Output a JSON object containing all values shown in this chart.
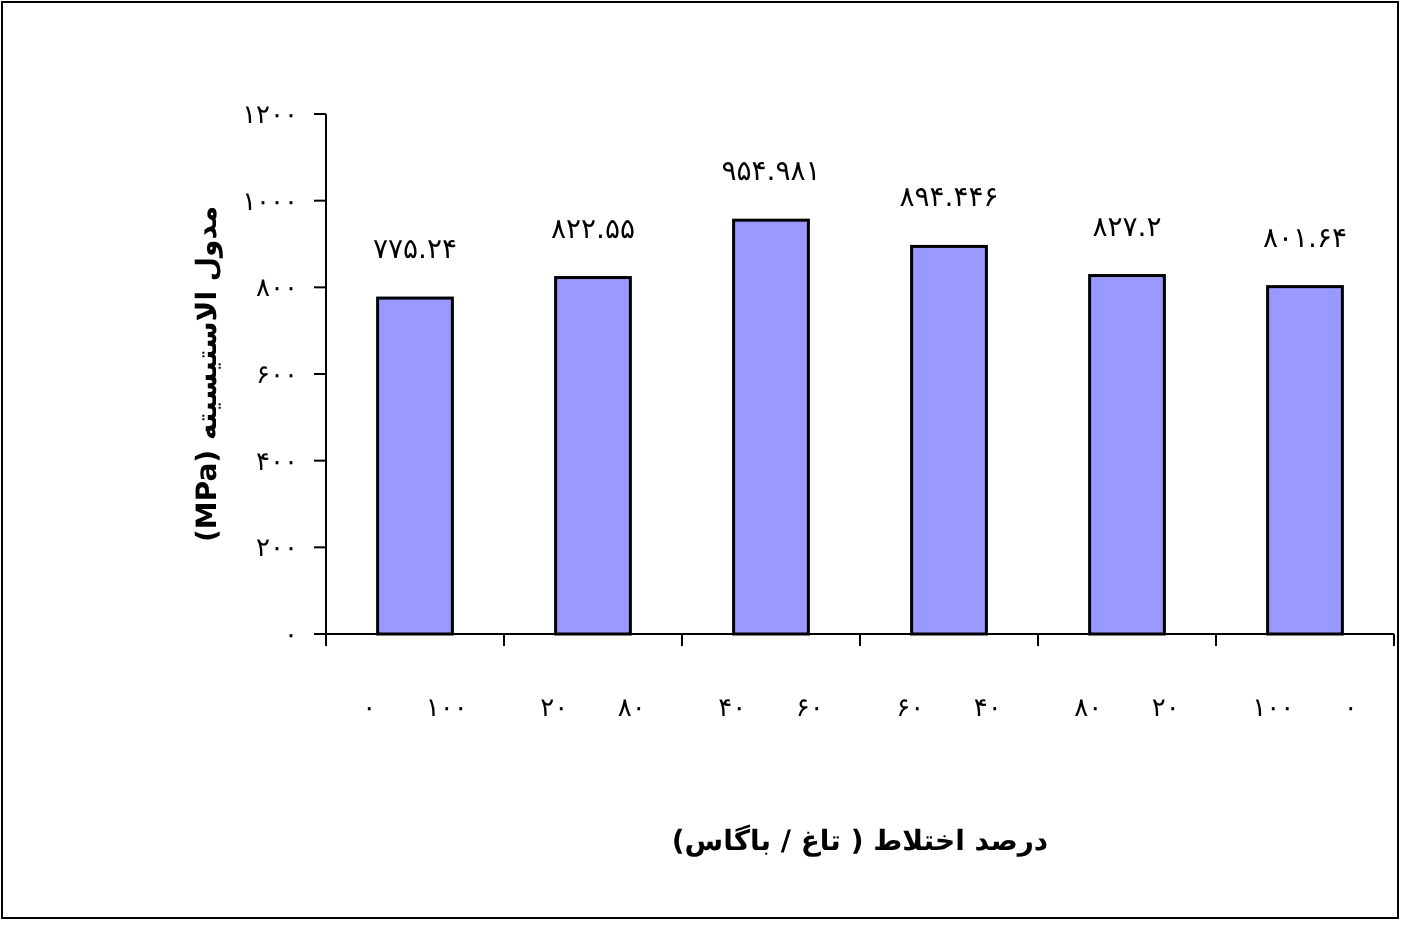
{
  "chart_data": {
    "type": "bar",
    "xlabel": "درصد اختلاط ( تاغ / باگاس)",
    "ylabel": "مدول الاستیسیته (MPa)",
    "categories": [
      "۰      ۱۰۰",
      "۲۰      ۸۰",
      "۴۰      ۶۰",
      "۶۰      ۴۰",
      "۸۰      ۲۰",
      "۱۰۰      ۰"
    ],
    "values": [
      775.24,
      822.55,
      954.981,
      894.446,
      827.2,
      801.64
    ],
    "value_labels": [
      "۷۷۵.۲۴",
      "۸۲۲.۵۵",
      "۹۵۴.۹۸۱",
      "۸۹۴.۴۴۶",
      "۸۲۷.۲",
      "۸۰۱.۶۴"
    ],
    "color": "#9999ff",
    "ylim": [
      0,
      1200
    ],
    "yticks": [
      {
        "value": 0,
        "label": "۰"
      },
      {
        "value": 200,
        "label": "۲۰۰"
      },
      {
        "value": 400,
        "label": "۴۰۰"
      },
      {
        "value": 600,
        "label": "۶۰۰"
      },
      {
        "value": 800,
        "label": "۸۰۰"
      },
      {
        "value": 1000,
        "label": "۱۰۰۰"
      },
      {
        "value": 1200,
        "label": "۱۲۰۰"
      }
    ],
    "grid": false
  }
}
